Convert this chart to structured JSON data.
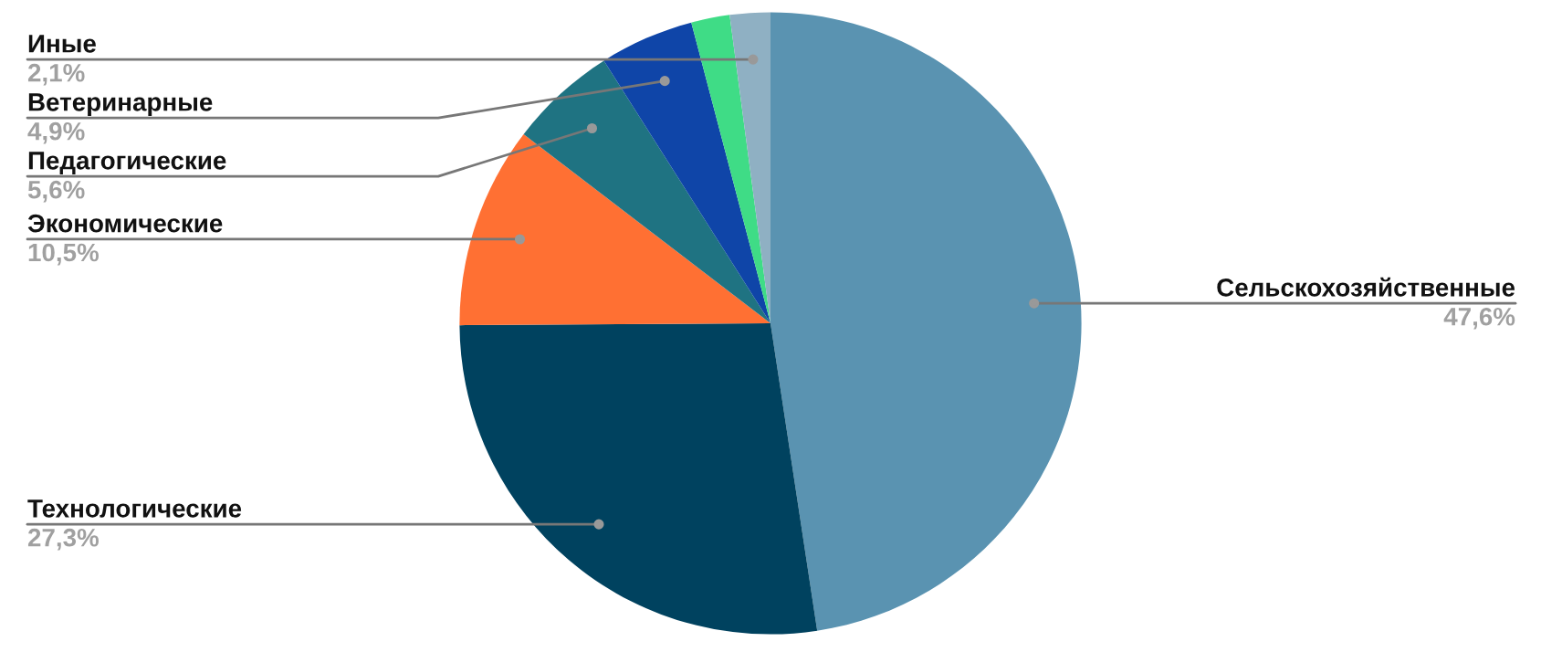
{
  "chart_data": {
    "type": "pie",
    "categories": [
      "Сельскохозяйственные",
      "Технологические",
      "Экономические",
      "Педагогические",
      "Ветеринарные",
      null,
      "Иные"
    ],
    "values": [
      47.6,
      27.3,
      10.5,
      5.6,
      4.9,
      2.0,
      2.1
    ],
    "value_labels": [
      "47,6%",
      "27,3%",
      "10,5%",
      "5,6%",
      "4,9%",
      null,
      "2,1%"
    ],
    "colors": [
      "#5a93b1",
      "#00425f",
      "#ff7033",
      "#1f7382",
      "#0f45a8",
      "#3fdc86",
      "#8fb0c3"
    ],
    "legend": false
  }
}
